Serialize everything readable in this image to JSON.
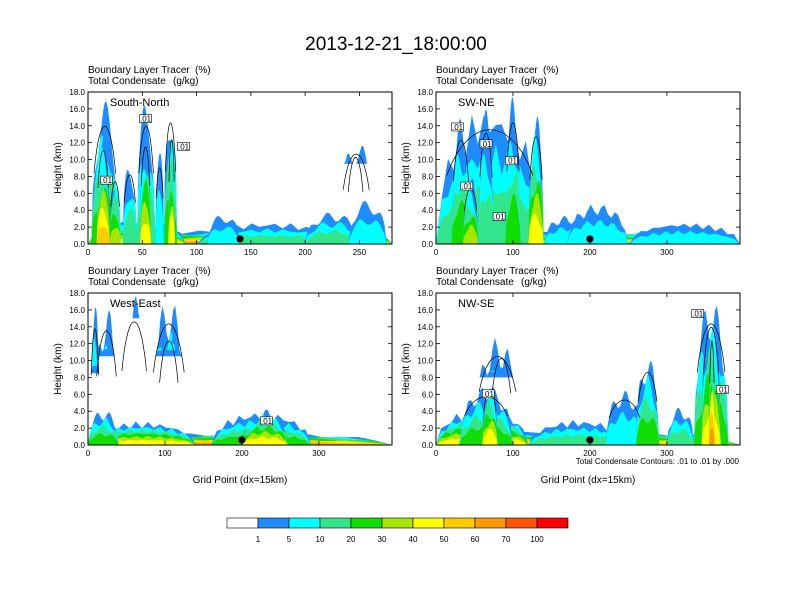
{
  "figure": {
    "title": "2013-12-21_18:00:00",
    "colorbar": {
      "colors": [
        "#ffffff",
        "#1e8cff",
        "#00ffff",
        "#33e68c",
        "#11dd00",
        "#a6e600",
        "#ffff00",
        "#ffcc00",
        "#ff9900",
        "#ff5500",
        "#ff0000"
      ],
      "labels": [
        "1",
        "5",
        "10",
        "20",
        "30",
        "40",
        "50",
        "60",
        "70",
        "100"
      ]
    },
    "contour_note": "Total Condensate Contours: .01 to .01 by .000"
  },
  "chart_data": [
    {
      "type": "heatmap",
      "section": "South-North",
      "title_line1": "Boundary Layer Tracer",
      "title_unit1": "(%)",
      "title_line2": "Total Condensate",
      "title_unit2": "(g/kg)",
      "ylabel": "Height (km)",
      "xlabel": "",
      "xlim": [
        0,
        280
      ],
      "ylim": [
        0,
        18
      ],
      "xticks": [
        0,
        50,
        100,
        150,
        200,
        250
      ],
      "yticks": [
        "0.0",
        "2.0",
        "4.0",
        "6.0",
        "8.0",
        "10.0",
        "12.0",
        "14.0",
        "16.0",
        "18.0"
      ],
      "marker_x": 140,
      "contour_labels": [
        {
          "text": ".01",
          "x": 53,
          "y": 14.8
        },
        {
          "text": ".01",
          "x": 88,
          "y": 11.5
        },
        {
          "text": ".01",
          "x": 17,
          "y": 7.5
        }
      ],
      "features": [
        {
          "x": [
            0,
            280
          ],
          "top": 0.8,
          "level": 10
        },
        {
          "x": [
            0,
            230
          ],
          "top": 1.6,
          "level": 8
        },
        {
          "x": [
            230,
            280
          ],
          "top": 1.3,
          "level": 7
        },
        {
          "x": [
            0,
            90
          ],
          "top": 3,
          "level": 6
        },
        {
          "x": [
            3,
            28
          ],
          "top": 17.0,
          "level": 4
        },
        {
          "x": [
            8,
            20
          ],
          "top": 13.5,
          "level": 7
        },
        {
          "x": [
            20,
            30
          ],
          "top": 9,
          "level": 5
        },
        {
          "x": [
            32,
            45
          ],
          "top": 10,
          "level": 3
        },
        {
          "x": [
            45,
            62
          ],
          "top": 17.0,
          "level": 3
        },
        {
          "x": [
            48,
            58
          ],
          "top": 14,
          "level": 6
        },
        {
          "x": [
            62,
            70
          ],
          "top": 11,
          "level": 2
        },
        {
          "x": [
            70,
            82
          ],
          "top": 17.5,
          "level": 4
        },
        {
          "x": [
            74,
            80
          ],
          "top": 15,
          "level": 6
        },
        {
          "x": [
            100,
            230
          ],
          "top": 2.6,
          "level": 3
        },
        {
          "x": [
            110,
            140
          ],
          "top": 3.6,
          "level": 2
        },
        {
          "x": [
            200,
            250
          ],
          "top": 3.8,
          "level": 3
        },
        {
          "x": [
            240,
            275
          ],
          "top": 5.2,
          "level": 2
        },
        {
          "x": [
            232,
            262
          ],
          "top": 13.0,
          "level": 2,
          "bottom": 9.5
        },
        {
          "x": [
            238,
            255
          ],
          "top": 12.5,
          "level": 4,
          "bottom": 10.5
        }
      ]
    },
    {
      "type": "heatmap",
      "section": "SW-NE",
      "title_line1": "Boundary Layer Tracer",
      "title_unit1": "(%)",
      "title_line2": "Total Condensate",
      "title_unit2": "(g/kg)",
      "ylabel": "Height (km)",
      "xlabel": "",
      "xlim": [
        0,
        395
      ],
      "ylim": [
        0,
        18
      ],
      "xticks": [
        0,
        100,
        200,
        300
      ],
      "yticks": [
        "0.0",
        "2.0",
        "4.0",
        "6.0",
        "8.0",
        "10.0",
        "12.0",
        "14.0",
        "16.0",
        "18.0"
      ],
      "marker_x": 200,
      "contour_labels": [
        {
          "text": ".01",
          "x": 28,
          "y": 13.8
        },
        {
          "text": ".01",
          "x": 65,
          "y": 11.8
        },
        {
          "text": ".01",
          "x": 98,
          "y": 9.8
        },
        {
          "text": ".01",
          "x": 40,
          "y": 6.8
        },
        {
          "text": ".01",
          "x": 82,
          "y": 3.2
        }
      ],
      "features": [
        {
          "x": [
            0,
            395
          ],
          "top": 0.8,
          "level": 10
        },
        {
          "x": [
            0,
            395
          ],
          "top": 1.6,
          "level": 7
        },
        {
          "x": [
            0,
            150
          ],
          "top": 3.2,
          "level": 6
        },
        {
          "x": [
            0,
            140
          ],
          "top": 16.5,
          "level": 3
        },
        {
          "x": [
            20,
            45
          ],
          "top": 15,
          "level": 4
        },
        {
          "x": [
            55,
            75
          ],
          "top": 16,
          "level": 3
        },
        {
          "x": [
            90,
            110
          ],
          "top": 17.5,
          "level": 4
        },
        {
          "x": [
            120,
            140
          ],
          "top": 15.5,
          "level": 6
        },
        {
          "x": [
            35,
            55
          ],
          "top": 8,
          "level": 5
        },
        {
          "x": [
            140,
            200
          ],
          "top": 3.4,
          "level": 2
        },
        {
          "x": [
            170,
            250
          ],
          "top": 4.8,
          "level": 2
        },
        {
          "x": [
            250,
            395
          ],
          "top": 2.6,
          "level": 2
        }
      ]
    },
    {
      "type": "heatmap",
      "section": "West-East",
      "title_line1": "Boundary Layer Tracer",
      "title_unit1": "(%)",
      "title_line2": "Total Condensate",
      "title_unit2": "(g/kg)",
      "ylabel": "Height (km)",
      "xlabel": "Grid Point (dx=15km)",
      "xlim": [
        0,
        395
      ],
      "ylim": [
        0,
        18
      ],
      "xticks": [
        0,
        100,
        200,
        300
      ],
      "yticks": [
        "0.0",
        "2.0",
        "4.0",
        "6.0",
        "8.0",
        "10.0",
        "12.0",
        "14.0",
        "16.0",
        "18.0"
      ],
      "marker_x": 200,
      "contour_labels": [
        {
          "text": ".01",
          "x": 232,
          "y": 2.8
        }
      ],
      "features": [
        {
          "x": [
            0,
            395
          ],
          "top": 0.9,
          "level": 10
        },
        {
          "x": [
            0,
            395
          ],
          "top": 1.5,
          "level": 8
        },
        {
          "x": [
            0,
            140
          ],
          "top": 2.8,
          "level": 6
        },
        {
          "x": [
            0,
            40
          ],
          "top": 4.2,
          "level": 4
        },
        {
          "x": [
            3,
            15
          ],
          "top": 16.8,
          "level": 4,
          "bottom": 8.5
        },
        {
          "x": [
            8,
            40
          ],
          "top": 16.5,
          "level": 3,
          "bottom": 10.5
        },
        {
          "x": [
            80,
            130
          ],
          "top": 17.5,
          "level": 4,
          "bottom": 10.5
        },
        {
          "x": [
            90,
            120
          ],
          "top": 15,
          "level": 5,
          "bottom": 12
        },
        {
          "x": [
            40,
            80
          ],
          "top": 17.8,
          "level": 2,
          "bottom": 15
        },
        {
          "x": [
            160,
            290
          ],
          "top": 4.0,
          "level": 4
        },
        {
          "x": [
            200,
            260
          ],
          "top": 4.3,
          "level": 6
        }
      ]
    },
    {
      "type": "heatmap",
      "section": "NW-SE",
      "title_line1": "Boundary Layer Tracer",
      "title_unit1": "(%)",
      "title_line2": "Total Condensate",
      "title_unit2": "(g/kg)",
      "ylabel": "Height (km)",
      "xlabel": "Grid Point (dx=15km)",
      "xlim": [
        0,
        395
      ],
      "ylim": [
        0,
        18
      ],
      "xticks": [
        0,
        100,
        200,
        300
      ],
      "yticks": [
        "0.0",
        "2.0",
        "4.0",
        "6.0",
        "8.0",
        "10.0",
        "12.0",
        "14.0",
        "16.0",
        "18.0"
      ],
      "marker_x": 200,
      "contour_labels": [
        {
          "text": ".01",
          "x": 68,
          "y": 6.0
        },
        {
          "text": ".01",
          "x": 340,
          "y": 15.5
        },
        {
          "text": ".01",
          "x": 372,
          "y": 6.5
        }
      ],
      "features": [
        {
          "x": [
            0,
            395
          ],
          "top": 0.9,
          "level": 10
        },
        {
          "x": [
            0,
            395
          ],
          "top": 1.8,
          "level": 7
        },
        {
          "x": [
            0,
            120
          ],
          "top": 4.5,
          "level": 6
        },
        {
          "x": [
            30,
            100
          ],
          "top": 7.0,
          "level": 4
        },
        {
          "x": [
            60,
            80
          ],
          "top": 8.0,
          "level": 6
        },
        {
          "x": [
            50,
            110
          ],
          "top": 12.8,
          "level": 3,
          "bottom": 8.0
        },
        {
          "x": [
            70,
            100
          ],
          "top": 12.5,
          "level": 4,
          "bottom": 9.0
        },
        {
          "x": [
            120,
            250
          ],
          "top": 3.0,
          "level": 3
        },
        {
          "x": [
            220,
            270
          ],
          "top": 6.5,
          "level": 2
        },
        {
          "x": [
            260,
            290
          ],
          "top": 10.5,
          "level": 4
        },
        {
          "x": [
            335,
            380
          ],
          "top": 17.5,
          "level": 4
        },
        {
          "x": [
            345,
            370
          ],
          "top": 17.0,
          "level": 6
        },
        {
          "x": [
            355,
            362
          ],
          "top": 15.0,
          "level": 8
        },
        {
          "x": [
            300,
            335
          ],
          "top": 4.5,
          "level": 3
        }
      ]
    }
  ]
}
